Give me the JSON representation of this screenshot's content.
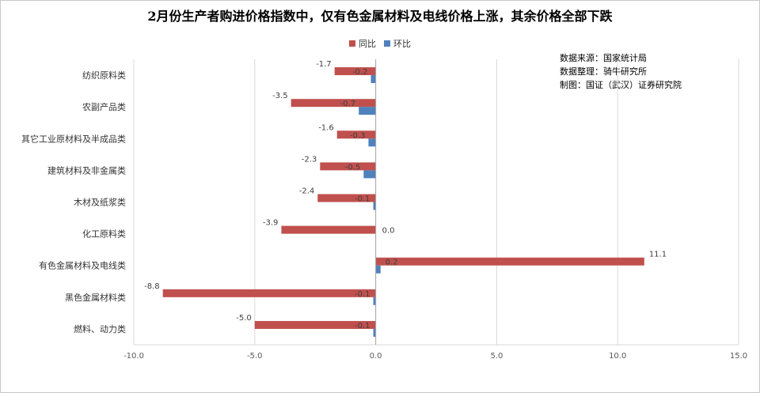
{
  "chart_data": {
    "type": "bar",
    "orientation": "horizontal",
    "title": "2月份生产者购进价格指数中，仅有色金属材料及电线价格上涨，其余价格全部下跌",
    "categories": [
      "纺织原料类",
      "农副产品类",
      "其它工业原材料及半成品类",
      "建筑材料及非金属类",
      "木材及纸浆类",
      "化工原料类",
      "有色金属材料及电线类",
      "黑色金属材料类",
      "燃料、动力类"
    ],
    "series": [
      {
        "name": "同比",
        "color": "#C0504D",
        "values": [
          -1.7,
          -3.5,
          -1.6,
          -2.3,
          -2.4,
          -3.9,
          11.1,
          -8.8,
          -5.0
        ]
      },
      {
        "name": "环比",
        "color": "#4F81BD",
        "values": [
          -0.2,
          -0.7,
          -0.3,
          -0.5,
          -0.1,
          0.0,
          0.2,
          -0.1,
          -0.1
        ]
      }
    ],
    "xlim": [
      -10.0,
      15.0
    ],
    "xticks": [
      "-10.0",
      "-5.0",
      "0.0",
      "5.0",
      "10.0",
      "15.0"
    ],
    "grid": true,
    "legend_position": "top"
  },
  "source": {
    "line1": "数据来源：国家统计局",
    "line2": "数据整理：骑牛研究所",
    "line3": "制图：国证（武汉）证券研究院"
  }
}
